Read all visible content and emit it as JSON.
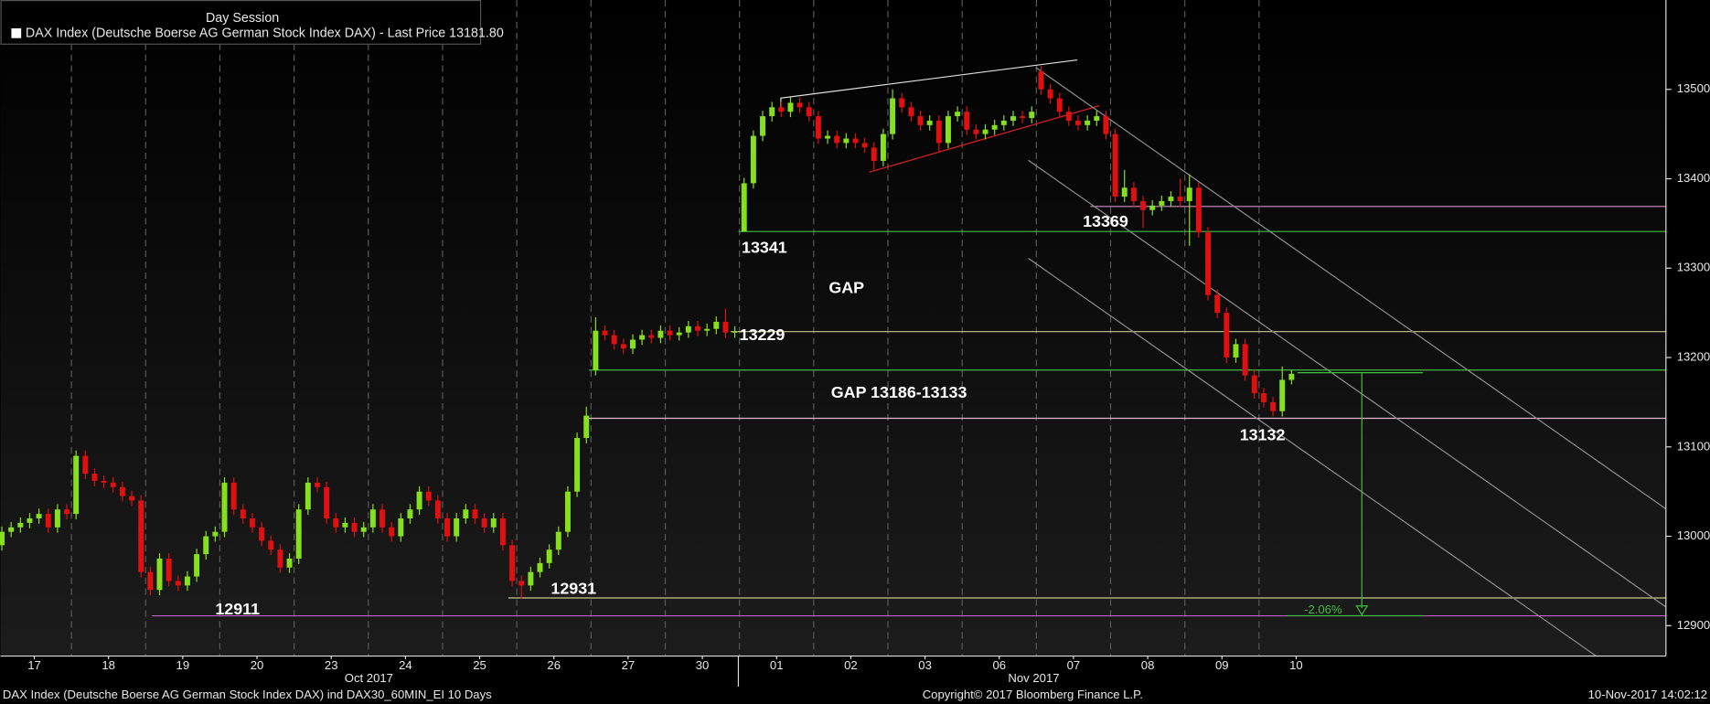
{
  "chart_data": {
    "type": "candlestick",
    "header": "Day Session",
    "legend": "DAX Index (Deutsche Boerse AG German Stock Index DAX) - Last Price 13181.80",
    "footer_left": "DAX Index (Deutsche Boerse AG German Stock Index DAX) ind DAX30_60MIN_EI 10 Days",
    "copyright": "Copyright© 2017 Bloomberg Finance L.P.",
    "timestamp": "10-Nov-2017 14:02:12",
    "month_labels": [
      "Oct 2017",
      "Nov 2017"
    ],
    "categories": [
      "17",
      "18",
      "19",
      "20",
      "23",
      "24",
      "25",
      "26",
      "27",
      "30",
      "01",
      "02",
      "03",
      "06",
      "07",
      "08",
      "09",
      "10"
    ],
    "up_color": "#86e01e",
    "down_color": "#e01010",
    "ylim": [
      12866,
      13600
    ],
    "yticks": [
      12900,
      13000,
      13100,
      13200,
      13300,
      13400,
      13500
    ],
    "open": [
      [
        12990,
        13005,
        13010,
        13015,
        13020,
        13025,
        13010,
        13030
      ],
      [
        13025,
        13090,
        13070,
        13062,
        13060,
        13055,
        13045,
        13040
      ],
      [
        12960,
        12940,
        12975,
        12950,
        12945,
        12955,
        12980,
        13000
      ],
      [
        13005,
        13060,
        13030,
        13020,
        13010,
        12995,
        12985,
        12965
      ],
      [
        12975,
        13030,
        13060,
        13055,
        13020,
        13010,
        13015,
        13005
      ],
      [
        13010,
        13030,
        13010,
        13000,
        13020,
        13030,
        13050,
        13040
      ],
      [
        13020,
        13000,
        13020,
        13030,
        13020,
        13010,
        13020,
        12990
      ],
      [
        12950,
        12945,
        12960,
        12970,
        12985,
        13005,
        13050,
        13110
      ],
      [
        13186,
        13230,
        13225,
        13215,
        13210,
        13220,
        13225,
        13222
      ],
      [
        13230,
        13225,
        13228,
        13235,
        13230,
        13232,
        13240,
        13228
      ],
      [
        13341,
        13395,
        13448,
        13470,
        13480,
        13475,
        13485,
        13480
      ],
      [
        13470,
        13445,
        13448,
        13440,
        13445,
        13440,
        13435,
        13420
      ],
      [
        13450,
        13490,
        13480,
        13470,
        13460,
        13465,
        13440,
        13470
      ],
      [
        13475,
        13455,
        13450,
        13455,
        13460,
        13465,
        13470,
        13468
      ],
      [
        13520,
        13500,
        13490,
        13475,
        13465,
        13460,
        13465,
        13470
      ],
      [
        13450,
        13380,
        13390,
        13375,
        13365,
        13370,
        13375,
        13380
      ],
      [
        13375,
        13390,
        13340,
        13270,
        13250,
        13200,
        13215,
        13180
      ],
      [
        13160,
        13150,
        13140,
        13175
      ]
    ],
    "high": [
      [
        13011,
        13016,
        13021,
        13026,
        13031,
        13031,
        13036,
        13036
      ],
      [
        13096,
        13096,
        13076,
        13068,
        13066,
        13061,
        13051,
        13046
      ],
      [
        12966,
        12981,
        12981,
        12956,
        12961,
        12986,
        13006,
        13011
      ],
      [
        13066,
        13066,
        13036,
        13026,
        13016,
        13001,
        12991,
        12981
      ],
      [
        13036,
        13066,
        13066,
        13061,
        13026,
        13021,
        13021,
        13016
      ],
      [
        13036,
        13036,
        13016,
        13026,
        13036,
        13056,
        13056,
        13046
      ],
      [
        13026,
        13026,
        13036,
        13036,
        13026,
        13026,
        13026,
        12996
      ],
      [
        12956,
        12966,
        12976,
        12991,
        13011,
        13056,
        13116,
        13145
      ],
      [
        13245,
        13236,
        13231,
        13221,
        13226,
        13231,
        13231,
        13236
      ],
      [
        13236,
        13234,
        13241,
        13241,
        13238,
        13246,
        13255,
        13235
      ],
      [
        13401,
        13454,
        13476,
        13486,
        13486,
        13491,
        13491,
        13486
      ],
      [
        13476,
        13454,
        13454,
        13451,
        13451,
        13446,
        13441,
        13456
      ],
      [
        13500,
        13496,
        13486,
        13476,
        13471,
        13471,
        13476,
        13481
      ],
      [
        13481,
        13461,
        13461,
        13466,
        13471,
        13476,
        13476,
        13481
      ],
      [
        13526,
        13506,
        13496,
        13481,
        13471,
        13471,
        13476,
        13476
      ],
      [
        13456,
        13410,
        13396,
        13381,
        13376,
        13381,
        13386,
        13400
      ],
      [
        13405,
        13396,
        13346,
        13276,
        13256,
        13221,
        13221,
        13186
      ],
      [
        13166,
        13156,
        13190,
        13186
      ]
    ],
    "low": [
      [
        12984,
        12999,
        13004,
        13009,
        13014,
        13004,
        13004,
        13019
      ],
      [
        13019,
        13064,
        13056,
        13054,
        13049,
        13039,
        13034,
        12954
      ],
      [
        12934,
        12934,
        12944,
        12939,
        12939,
        12949,
        12974,
        12994
      ],
      [
        12999,
        13024,
        13014,
        13004,
        12989,
        12979,
        12959,
        12959
      ],
      [
        12969,
        13024,
        13049,
        13014,
        13004,
        13004,
        12999,
        12999
      ],
      [
        13004,
        13004,
        12994,
        12994,
        13014,
        13024,
        13034,
        13014
      ],
      [
        12994,
        12994,
        13014,
        13014,
        13004,
        13004,
        12984,
        12944
      ],
      [
        12930,
        12939,
        12954,
        12964,
        12979,
        12999,
        13044,
        13104
      ],
      [
        13180,
        13219,
        13209,
        13204,
        13204,
        13214,
        13216,
        13216
      ],
      [
        13219,
        13219,
        13222,
        13224,
        13224,
        13226,
        13222,
        13222
      ],
      [
        13341,
        13389,
        13442,
        13464,
        13469,
        13469,
        13474,
        13464
      ],
      [
        13439,
        13439,
        13434,
        13434,
        13434,
        13429,
        13410,
        13414
      ],
      [
        13444,
        13474,
        13464,
        13454,
        13454,
        13430,
        13434,
        13464
      ],
      [
        13449,
        13444,
        13444,
        13449,
        13454,
        13459,
        13462,
        13462
      ],
      [
        13494,
        13484,
        13469,
        13459,
        13454,
        13454,
        13459,
        13444
      ],
      [
        13374,
        13374,
        13369,
        13345,
        13359,
        13364,
        13369,
        13369
      ],
      [
        13325,
        13334,
        13264,
        13244,
        13194,
        13194,
        13174,
        13154
      ],
      [
        13144,
        13134,
        13134,
        13170
      ]
    ],
    "close": [
      [
        13005,
        13010,
        13015,
        13020,
        13025,
        13010,
        13030,
        13025
      ],
      [
        13090,
        13070,
        13062,
        13060,
        13055,
        13045,
        13040,
        12960
      ],
      [
        12940,
        12975,
        12950,
        12945,
        12955,
        12980,
        13000,
        13005
      ],
      [
        13060,
        13030,
        13020,
        13010,
        12995,
        12985,
        12965,
        12975
      ],
      [
        13030,
        13060,
        13055,
        13020,
        13010,
        13015,
        13005,
        13010
      ],
      [
        13030,
        13010,
        13000,
        13020,
        13030,
        13050,
        13040,
        13020
      ],
      [
        13000,
        13020,
        13030,
        13020,
        13010,
        13020,
        12990,
        12950
      ],
      [
        12945,
        12960,
        12970,
        12985,
        13005,
        13050,
        13110,
        13135
      ],
      [
        13230,
        13225,
        13215,
        13210,
        13220,
        13225,
        13222,
        13230
      ],
      [
        13225,
        13228,
        13235,
        13230,
        13232,
        13240,
        13228,
        13229
      ],
      [
        13395,
        13448,
        13470,
        13480,
        13475,
        13485,
        13480,
        13470
      ],
      [
        13445,
        13448,
        13440,
        13445,
        13440,
        13435,
        13420,
        13450
      ],
      [
        13490,
        13480,
        13470,
        13460,
        13465,
        13440,
        13470,
        13475
      ],
      [
        13455,
        13450,
        13455,
        13460,
        13465,
        13470,
        13468,
        13475
      ],
      [
        13500,
        13490,
        13475,
        13465,
        13460,
        13465,
        13470,
        13450
      ],
      [
        13380,
        13390,
        13375,
        13365,
        13370,
        13375,
        13380,
        13375
      ],
      [
        13390,
        13340,
        13270,
        13250,
        13200,
        13215,
        13180,
        13160
      ],
      [
        13150,
        13140,
        13175,
        13181.8
      ]
    ],
    "levels": [
      {
        "value": 13369,
        "color": "#c98fc9"
      },
      {
        "value": 13341,
        "color": "#3fbf3f"
      },
      {
        "value": 13229,
        "color": "#c8c890"
      },
      {
        "value": 13186,
        "color": "#3fbf3f"
      },
      {
        "value": 13132,
        "color": "#e8b8d0"
      },
      {
        "value": 12931,
        "color": "#c8c890"
      },
      {
        "value": 12911,
        "color": "#c060c0"
      }
    ],
    "annotations": [
      "GAP",
      "GAP 13186-13133",
      "-2.06%"
    ]
  }
}
